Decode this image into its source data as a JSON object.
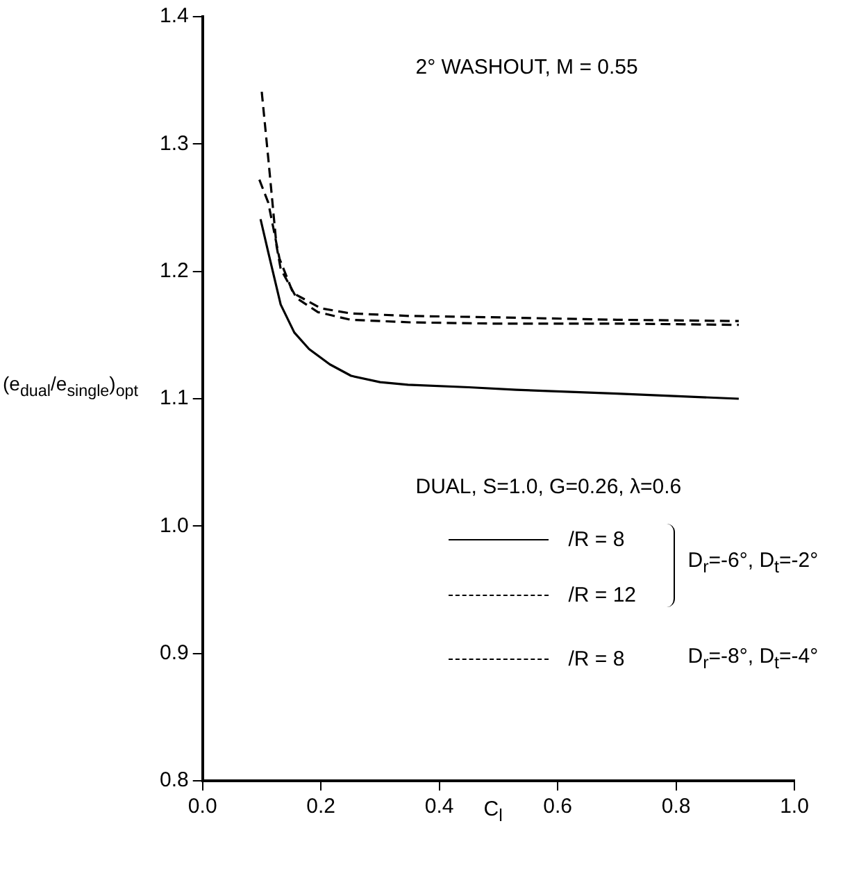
{
  "chart_data": {
    "type": "line",
    "title": "2° WASHOUT, M = 0.55",
    "xlabel": "C$_{l}$",
    "ylabel": "(e$_{dual}$/e$_{single}$)$_{opt}$",
    "legend_title": "DUAL, S=1.0, G=0.26, λ=0.6",
    "legend": "bottom right",
    "grid": false,
    "marker": "none",
    "xlim": [
      0.0,
      1.0
    ],
    "xticks": [
      {
        "value": 0,
        "label": "0.0"
      },
      0.2,
      0.4,
      0.6,
      0.8,
      {
        "value": 1,
        "label": "1.0"
      }
    ],
    "ylim": [
      0.8,
      1.4
    ],
    "yticks": [
      0.8,
      0.9,
      {
        "value": 1,
        "label": "1.0"
      },
      1.1,
      1.2,
      1.3,
      1.4
    ],
    "series": [
      {
        "name": "/R = 8",
        "color": "#000000",
        "line_style": "solid",
        "x": [
          0.098,
          0.111,
          0.132,
          0.155,
          0.18,
          0.215,
          0.251,
          0.3,
          0.347,
          0.45,
          0.53,
          0.7,
          0.906
        ],
        "values": [
          1.241,
          1.215,
          1.174,
          1.152,
          1.139,
          1.127,
          1.118,
          1.113,
          1.111,
          1.109,
          1.107,
          1.104,
          1.1
        ]
      },
      {
        "name": "/R = 12",
        "color": "#000000",
        "line_style": "dashed",
        "x": [
          0.1,
          0.111,
          0.125,
          0.132,
          0.159,
          0.195,
          0.25,
          0.35,
          0.49,
          0.7,
          0.906
        ],
        "values": [
          1.341,
          1.289,
          1.22,
          1.202,
          1.179,
          1.168,
          1.162,
          1.16,
          1.159,
          1.159,
          1.158
        ]
      },
      {
        "name": "/R = 8",
        "color": "#000000",
        "line_style": "dashed",
        "x": [
          0.096,
          0.111,
          0.13,
          0.153,
          0.2,
          0.25,
          0.35,
          0.487,
          0.7,
          0.906
        ],
        "values": [
          1.272,
          1.254,
          1.21,
          1.183,
          1.171,
          1.167,
          1.165,
          1.164,
          1.162,
          1.161
        ]
      }
    ],
    "annotations": [
      "D$_{r}$=-6°, D$_{t}$=-2°",
      "D$_{r}$=-8°, D$_{t}$=-4°"
    ]
  }
}
